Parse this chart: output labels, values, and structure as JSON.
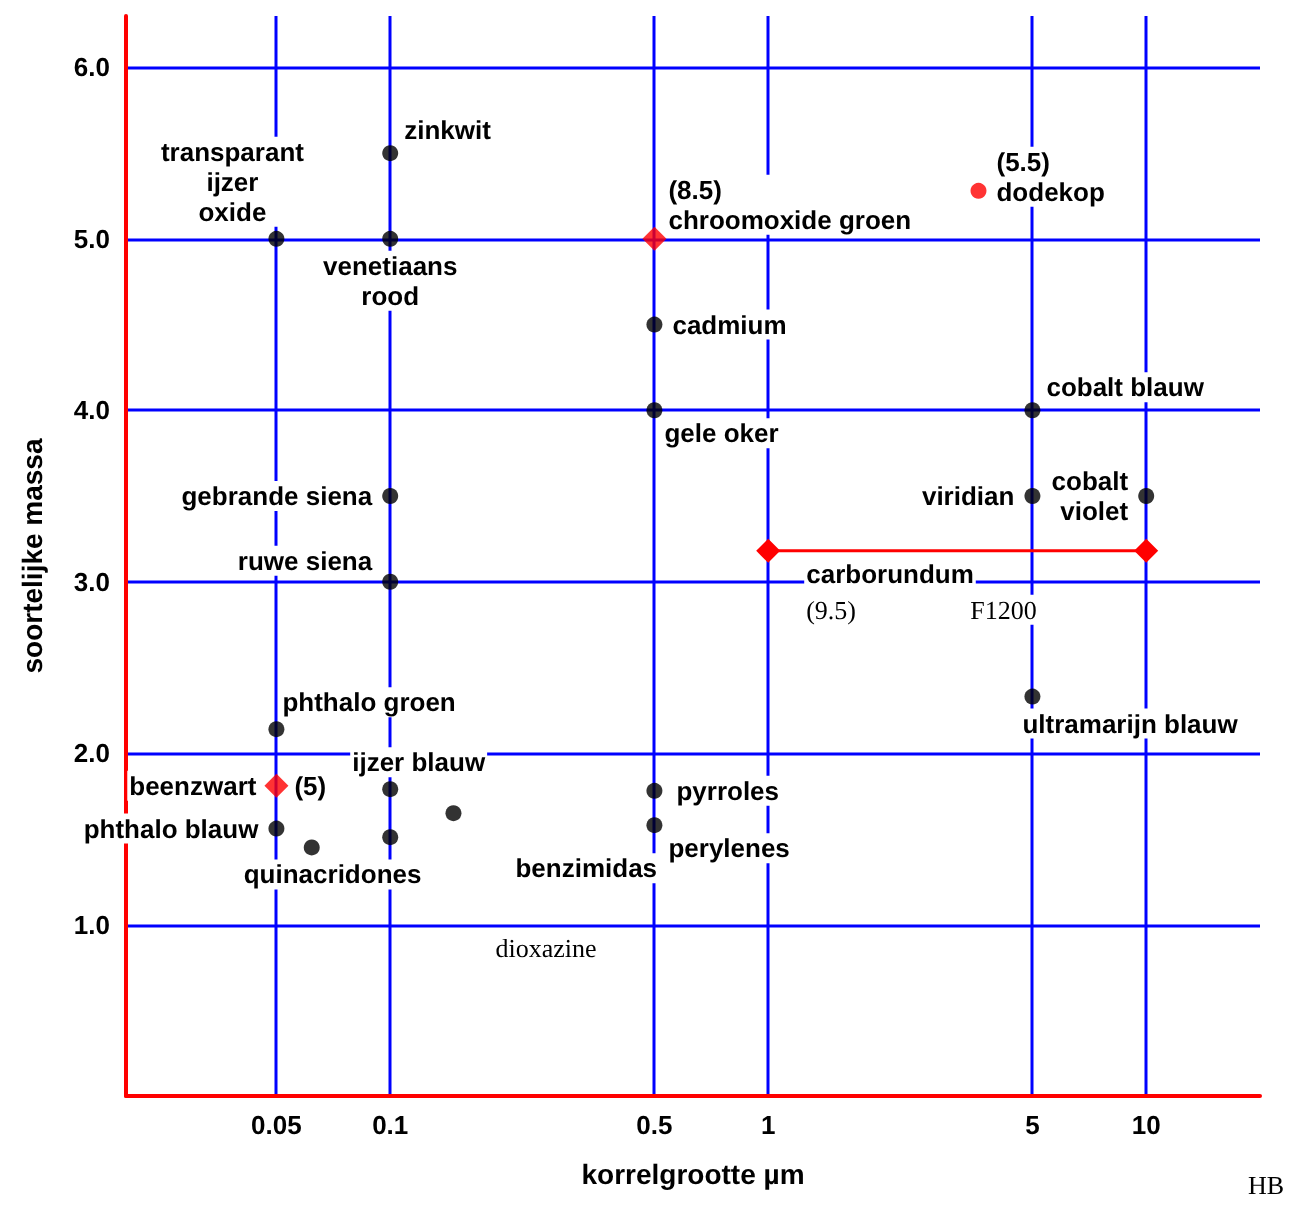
{
  "chart_data": {
    "type": "scatter",
    "xlabel": "korrelgrootte µm",
    "ylabel": "soortelijke massa",
    "log": "x",
    "grid": true,
    "xlim": [
      0.02,
      20
    ],
    "xticks": [
      0.05,
      0.1,
      0.5,
      1,
      5,
      10
    ],
    "ylim": [
      0,
      6.3
    ],
    "yticks": [
      {
        "value": 1,
        "label": "1.0"
      },
      {
        "value": 2,
        "label": "2.0"
      },
      {
        "value": 3,
        "label": "3.0"
      },
      {
        "value": 4,
        "label": "4.0"
      },
      {
        "value": 5,
        "label": "5.0"
      },
      {
        "value": 6,
        "label": "6.0"
      }
    ],
    "series": [
      {
        "color": "#000000",
        "marker": "circle",
        "x": [
          0.05,
          0.1,
          0.1,
          0.5,
          0.5,
          0.1,
          0.1,
          5,
          5,
          10,
          5,
          0.05,
          0.05,
          0.062,
          0.1,
          0.147,
          0.1,
          0.5,
          0.5
        ],
        "values": [
          5.0,
          5.5,
          5.0,
          4.5,
          4.0,
          3.5,
          3.0,
          4.0,
          3.5,
          3.5,
          2.33,
          2.14,
          1.56,
          1.45,
          1.79,
          1.65,
          1.51,
          1.78,
          1.58
        ]
      },
      {
        "color": "#ff0000",
        "marker": "diamond",
        "x": [
          0.5,
          0.05
        ],
        "values": [
          5.0,
          1.81
        ]
      },
      {
        "color": "#ff0000",
        "marker": "circle",
        "x": [
          3.6
        ],
        "values": [
          5.28
        ]
      },
      {
        "type": "line",
        "color": "#ff0000",
        "marker": "diamond",
        "x": [
          1,
          10
        ],
        "values": [
          3.18,
          3.18
        ]
      }
    ],
    "annotations": [
      {
        "text": "transparant\nijzer\noxide",
        "x": 0.05,
        "y": 5.0
      },
      {
        "text": "zinkwit",
        "x": 0.1,
        "y": 5.5
      },
      {
        "text": "venetiaans\nrood",
        "x": 0.1,
        "y": 5.0
      },
      {
        "text": "(8.5)\nchroomoxide groen",
        "x": 0.5,
        "y": 5.0
      },
      {
        "text": "(5.5)\ndodekop",
        "x": 3.6,
        "y": 5.28
      },
      {
        "text": "cadmium",
        "x": 0.5,
        "y": 4.5
      },
      {
        "text": "gele oker",
        "x": 0.5,
        "y": 4.0
      },
      {
        "text": "cobalt blauw",
        "x": 5,
        "y": 4.0
      },
      {
        "text": "gebrande siena",
        "x": 0.1,
        "y": 3.5
      },
      {
        "text": "ruwe siena",
        "x": 0.1,
        "y": 3.0
      },
      {
        "text": "viridian",
        "x": 5,
        "y": 3.5
      },
      {
        "text": "cobalt\nviolet",
        "x": 10,
        "y": 3.5
      },
      {
        "text": "carborundum",
        "x": 1,
        "y": 3.18
      },
      "(9.5)",
      "F1200",
      {
        "text": "ultramarijn blauw",
        "x": 5,
        "y": 2.33
      },
      {
        "text": "phthalo groen",
        "x": 0.05,
        "y": 2.14
      },
      {
        "text": "beenzwart",
        "x": 0.05,
        "y": 1.81
      },
      {
        "text": "(5)",
        "x": 0.05,
        "y": 1.81
      },
      {
        "text": "phthalo blauw",
        "x": 0.05,
        "y": 1.56
      },
      {
        "text": "quinacridones",
        "x": 0.062,
        "y": 1.45
      },
      {
        "text": "ijzer blauw",
        "x": 0.1,
        "y": 1.79
      },
      {
        "text": "pyrroles",
        "x": 0.5,
        "y": 1.78
      },
      {
        "text": "perylenes",
        "x": 0.5,
        "y": 1.58
      },
      {
        "text": "benzimidas",
        "x": 0.147,
        "y": 1.65
      },
      "dioxazine",
      "HB"
    ]
  }
}
